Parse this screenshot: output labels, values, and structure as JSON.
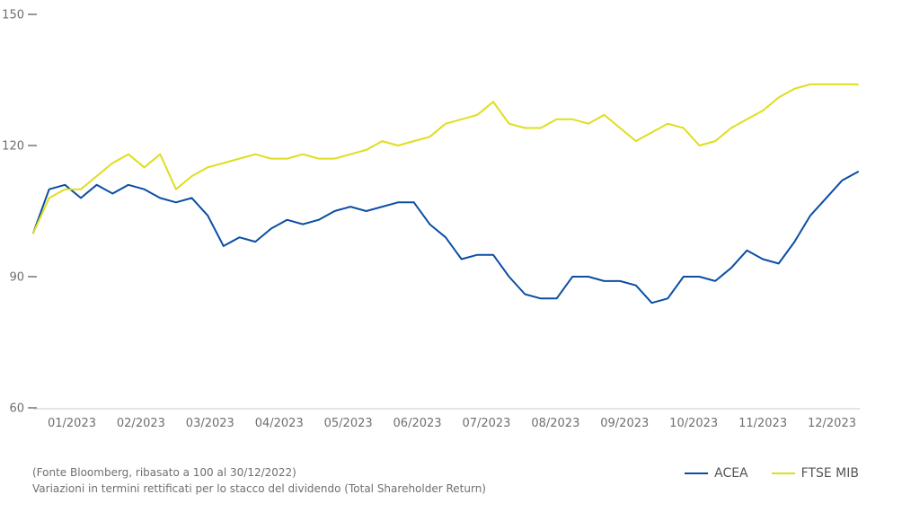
{
  "chart_data": {
    "type": "line",
    "ylim": [
      60,
      150
    ],
    "yticks": [
      {
        "value": 150,
        "label": "150"
      },
      {
        "value": 120,
        "label": "120"
      },
      {
        "value": 90,
        "label": "90"
      },
      {
        "value": 60,
        "label": "60"
      }
    ],
    "xticks": [
      "01/2023",
      "02/2023",
      "03/2023",
      "04/2023",
      "05/2023",
      "06/2023",
      "07/2023",
      "08/2023",
      "09/2023",
      "10/2023",
      "11/2023",
      "12/2023"
    ],
    "x": [
      "2022-12-30",
      "2023-01-06",
      "2023-01-13",
      "2023-01-20",
      "2023-01-27",
      "2023-02-03",
      "2023-02-10",
      "2023-02-17",
      "2023-02-24",
      "2023-03-03",
      "2023-03-10",
      "2023-03-17",
      "2023-03-24",
      "2023-03-31",
      "2023-04-07",
      "2023-04-14",
      "2023-04-21",
      "2023-04-28",
      "2023-05-05",
      "2023-05-12",
      "2023-05-19",
      "2023-05-26",
      "2023-06-02",
      "2023-06-09",
      "2023-06-16",
      "2023-06-23",
      "2023-06-30",
      "2023-07-07",
      "2023-07-14",
      "2023-07-21",
      "2023-07-28",
      "2023-08-04",
      "2023-08-11",
      "2023-08-18",
      "2023-08-25",
      "2023-09-01",
      "2023-09-08",
      "2023-09-15",
      "2023-09-22",
      "2023-09-29",
      "2023-10-06",
      "2023-10-13",
      "2023-10-20",
      "2023-10-27",
      "2023-11-03",
      "2023-11-10",
      "2023-11-17",
      "2023-11-24",
      "2023-12-01",
      "2023-12-08",
      "2023-12-15",
      "2023-12-22",
      "2023-12-29"
    ],
    "series": [
      {
        "name": "ACEA",
        "color": "#0b4ea2",
        "values": [
          100,
          110,
          111,
          108,
          111,
          109,
          111,
          110,
          108,
          107,
          108,
          104,
          97,
          99,
          98,
          101,
          103,
          102,
          103,
          105,
          106,
          105,
          106,
          107,
          107,
          102,
          99,
          94,
          95,
          95,
          90,
          86,
          85,
          85,
          90,
          90,
          89,
          89,
          88,
          84,
          85,
          90,
          90,
          89,
          92,
          96,
          94,
          93,
          98,
          104,
          108,
          112,
          114
        ]
      },
      {
        "name": "FTSE MIB",
        "color": "#dede1f",
        "values": [
          100,
          108,
          110,
          110,
          113,
          116,
          118,
          115,
          118,
          110,
          113,
          115,
          116,
          117,
          118,
          117,
          117,
          118,
          117,
          117,
          118,
          119,
          121,
          120,
          121,
          122,
          125,
          126,
          127,
          130,
          125,
          124,
          124,
          126,
          126,
          125,
          127,
          124,
          121,
          123,
          125,
          124,
          120,
          121,
          124,
          126,
          128,
          131,
          133,
          134,
          134,
          134,
          134
        ]
      }
    ]
  },
  "legend": {
    "acea": "ACEA",
    "ftse": "FTSE MIB"
  },
  "notes": {
    "line1": "(Fonte Bloomberg, ribasato a 100 al 30/12/2022)",
    "line2": "Variazioni in termini rettificati per lo stacco del dividendo (Total Shareholder Return)"
  }
}
